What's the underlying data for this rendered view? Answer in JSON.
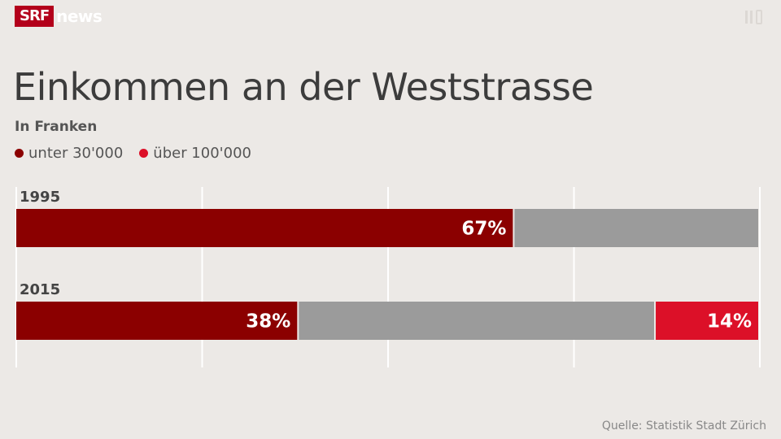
{
  "brand": {
    "srf": "SRF",
    "news": "news"
  },
  "corner_icon": "toolbar-icon",
  "title": "Einkommen an der Weststrasse",
  "subtitle": "In Franken",
  "legend": [
    {
      "label": "unter 30'000",
      "color": "#8b0000"
    },
    {
      "label": "über 100'000",
      "color": "#dc1028"
    }
  ],
  "colors": {
    "low": "#8b0000",
    "mid": "#9b9b9b",
    "high": "#dc1028",
    "grid": "#ffffff"
  },
  "chart_data": {
    "type": "bar",
    "orientation": "horizontal",
    "stacked": true,
    "unit": "%",
    "xlim": [
      0,
      100
    ],
    "grid": true,
    "categories": [
      "1995",
      "2015"
    ],
    "series": [
      {
        "name": "unter 30'000",
        "values": [
          67,
          38
        ],
        "labels": [
          "67%",
          "38%"
        ]
      },
      {
        "values": [
          33,
          48
        ],
        "labels": [
          "",
          ""
        ]
      },
      {
        "name": "über 100'000",
        "values": [
          0,
          14
        ],
        "labels": [
          "",
          "14%"
        ]
      }
    ]
  },
  "source": "Quelle: Statistik Stadt Zürich"
}
